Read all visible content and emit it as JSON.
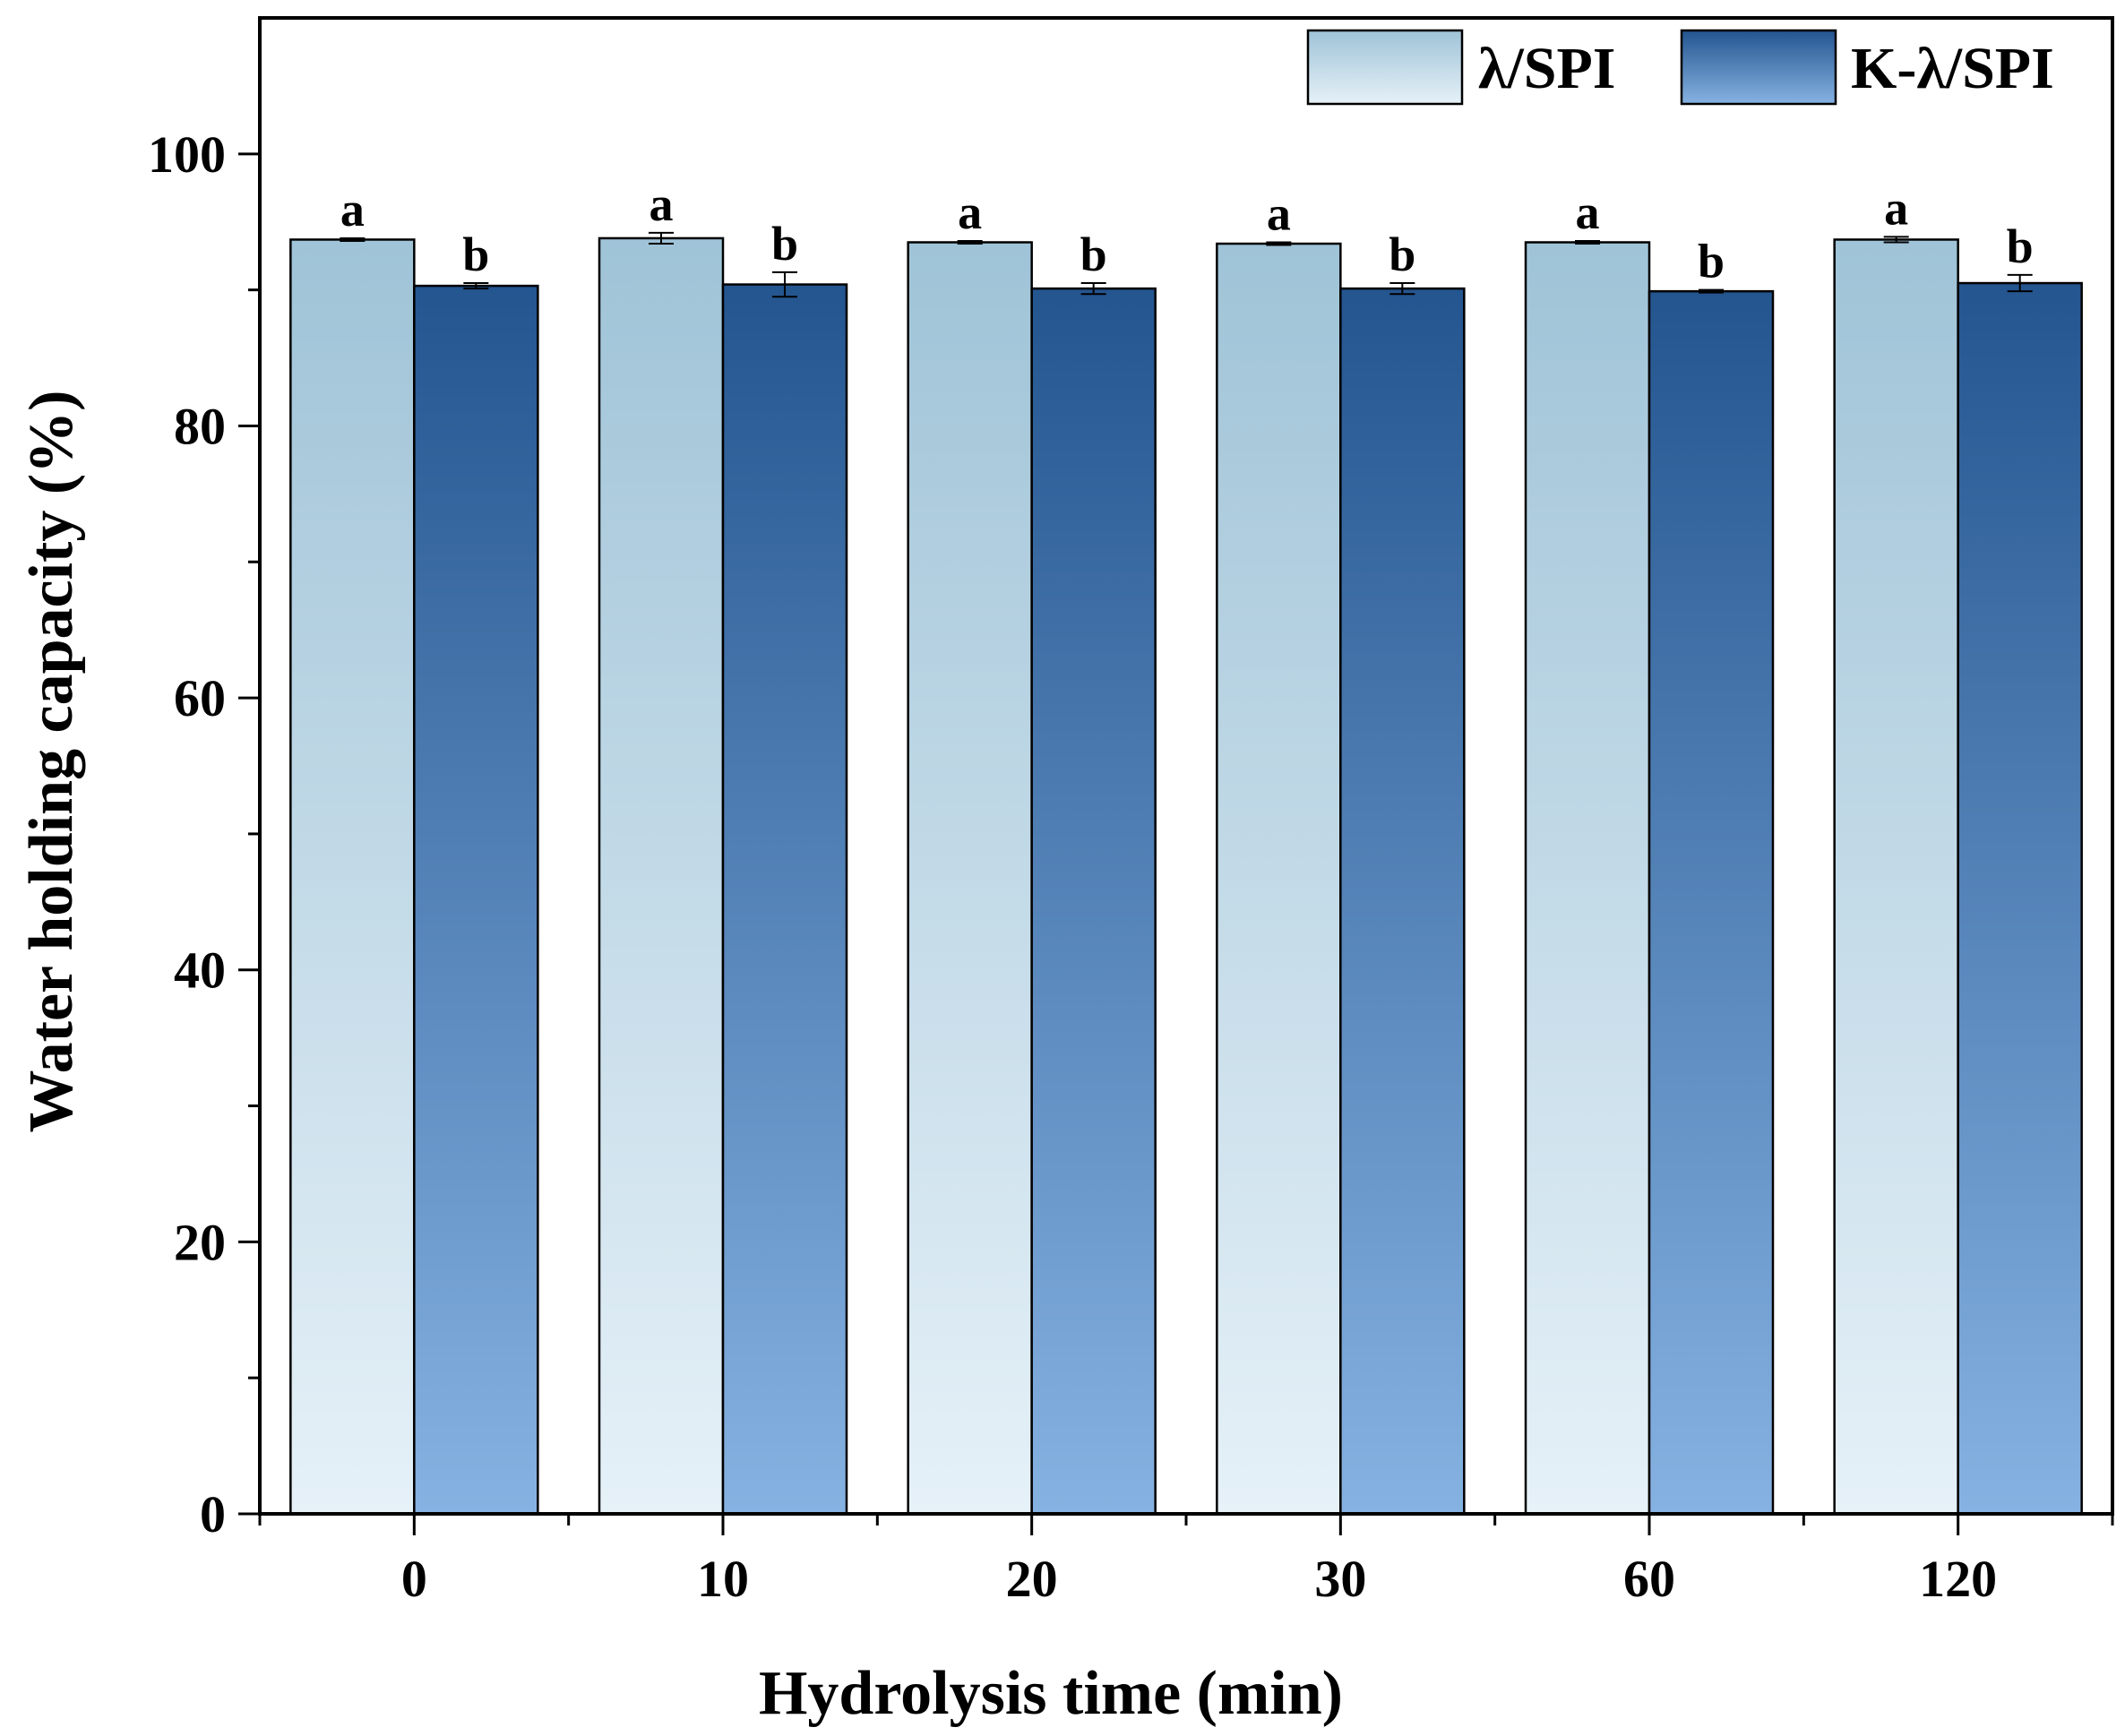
{
  "chart_data": {
    "type": "bar",
    "title": "",
    "xlabel": "Hydrolysis time (min)",
    "ylabel": "Water holding capacity (%)",
    "categories": [
      "0",
      "10",
      "20",
      "30",
      "60",
      "120"
    ],
    "ylim": [
      0,
      110
    ],
    "yticks": [
      0,
      20,
      40,
      60,
      80,
      100
    ],
    "legend_position": "top-right",
    "series": [
      {
        "name": "λ/SPI",
        "values": [
          93.7,
          93.8,
          93.5,
          93.4,
          93.5,
          93.7
        ],
        "errors": [
          0.1,
          0.4,
          0.1,
          0.1,
          0.1,
          0.2
        ],
        "significance": [
          "a",
          "a",
          "a",
          "a",
          "a",
          "a"
        ],
        "color_top": "#9fc3d7",
        "color_bottom": "#e6f1f8"
      },
      {
        "name": "K-λ/SPI",
        "values": [
          90.3,
          90.4,
          90.1,
          90.1,
          89.9,
          90.5
        ],
        "errors": [
          0.2,
          0.9,
          0.4,
          0.4,
          0.1,
          0.6
        ],
        "significance": [
          "b",
          "b",
          "b",
          "b",
          "b",
          "b"
        ],
        "color_top": "#24558f",
        "color_bottom": "#86b2e2"
      }
    ]
  }
}
